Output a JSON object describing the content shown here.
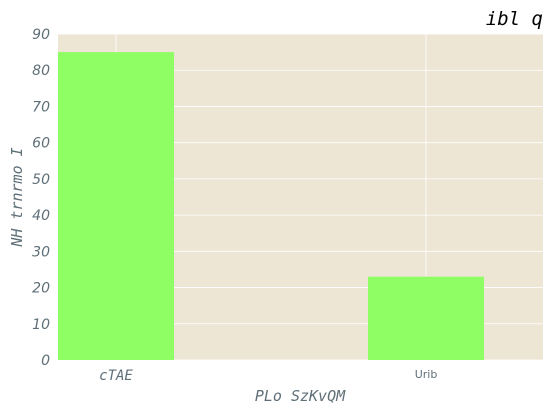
{
  "chart_data": {
    "type": "bar",
    "title": "ibl q",
    "xlabel": "PLo SzKvQM",
    "ylabel": "NH trnrmo I",
    "categories": [
      "cTAE",
      "Urib"
    ],
    "values": [
      85,
      23
    ],
    "ylim": [
      0,
      90
    ],
    "yticks": [
      0,
      10,
      20,
      30,
      40,
      50,
      60,
      70,
      80,
      90
    ],
    "grid": true,
    "colors": {
      "bar": "#8ffe64",
      "plot_background": "#ede6d5",
      "grid": "#ffffff"
    }
  }
}
